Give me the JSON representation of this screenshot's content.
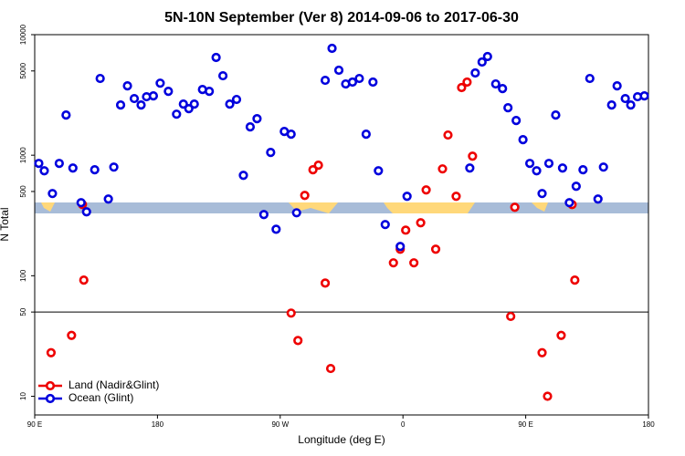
{
  "chart_data": {
    "type": "scatter",
    "title": "5N-10N September (Ver 8)   2014-09-06 to 2017-06-30",
    "x_label": "Longitude (deg E)",
    "y_label": "N Total",
    "log_y": true,
    "legend": "lower left",
    "reference_line": 50,
    "xlim": [
      90,
      540
    ],
    "xticks": [
      {
        "value": 90,
        "label": "90 E"
      },
      180,
      {
        "value": 270,
        "label": "90 W"
      },
      {
        "value": 360,
        "label": "0"
      },
      {
        "value": 450,
        "label": "90 E"
      },
      {
        "value": 540,
        "label": "180"
      }
    ],
    "ylim": [
      7,
      10000
    ],
    "yticks": [
      10,
      50,
      100,
      500,
      1000,
      5000,
      10000
    ],
    "series": [
      {
        "name": "Land (Nadir&Glint)",
        "color": "#ee0000",
        "x": [
          102,
          117,
          125,
          126,
          278,
          283,
          288,
          294,
          298,
          303,
          307,
          353,
          358,
          362,
          368,
          373,
          377,
          384,
          389,
          393,
          399,
          403,
          407,
          411,
          439,
          442,
          462,
          466,
          476,
          484,
          486
        ],
        "values": [
          23,
          32,
          390,
          92,
          49,
          29,
          464,
          757,
          826,
          87,
          17,
          128,
          166,
          239,
          128,
          275,
          515,
          166,
          770,
          1470,
          456,
          3640,
          4040,
          981,
          46,
          370,
          23,
          10,
          32,
          390,
          92
        ]
      },
      {
        "name": "Ocean (Glint)",
        "color": "#0000dd",
        "x": [
          93,
          97,
          103,
          108,
          113,
          118,
          124,
          128,
          134,
          138,
          144,
          148,
          153,
          158,
          163,
          168,
          172,
          177,
          182,
          188,
          194,
          199,
          203,
          207,
          213,
          218,
          223,
          228,
          233,
          238,
          243,
          248,
          253,
          258,
          263,
          267,
          273,
          278,
          282,
          303,
          308,
          313,
          318,
          323,
          328,
          333,
          338,
          342,
          347,
          358,
          363,
          409,
          413,
          418,
          422,
          428,
          433,
          437,
          443,
          448,
          453,
          458,
          462,
          467,
          472,
          477,
          482,
          487,
          492,
          497,
          503,
          507,
          513,
          517,
          523,
          527,
          532,
          537
        ],
        "values": [
          855,
          743,
          481,
          855,
          2155,
          783,
          404,
          339,
          757,
          4330,
          433,
          797,
          2610,
          3760,
          2950,
          2610,
          3055,
          3105,
          3960,
          3390,
          2190,
          2655,
          2435,
          2655,
          3510,
          3390,
          6470,
          4560,
          2655,
          2900,
          681,
          1718,
          2010,
          322,
          1054,
          243,
          1574,
          1494,
          333,
          4180,
          7700,
          5070,
          3900,
          4040,
          4330,
          1494,
          4040,
          743,
          266,
          175,
          456,
          783,
          4810,
          5930,
          6580,
          3900,
          3570,
          2475,
          1940,
          1345,
          855,
          743,
          481,
          855,
          2155,
          783,
          404,
          552,
          757,
          4330,
          433,
          797,
          2610,
          3760,
          2950,
          2610,
          3055,
          3105
        ]
      }
    ]
  }
}
